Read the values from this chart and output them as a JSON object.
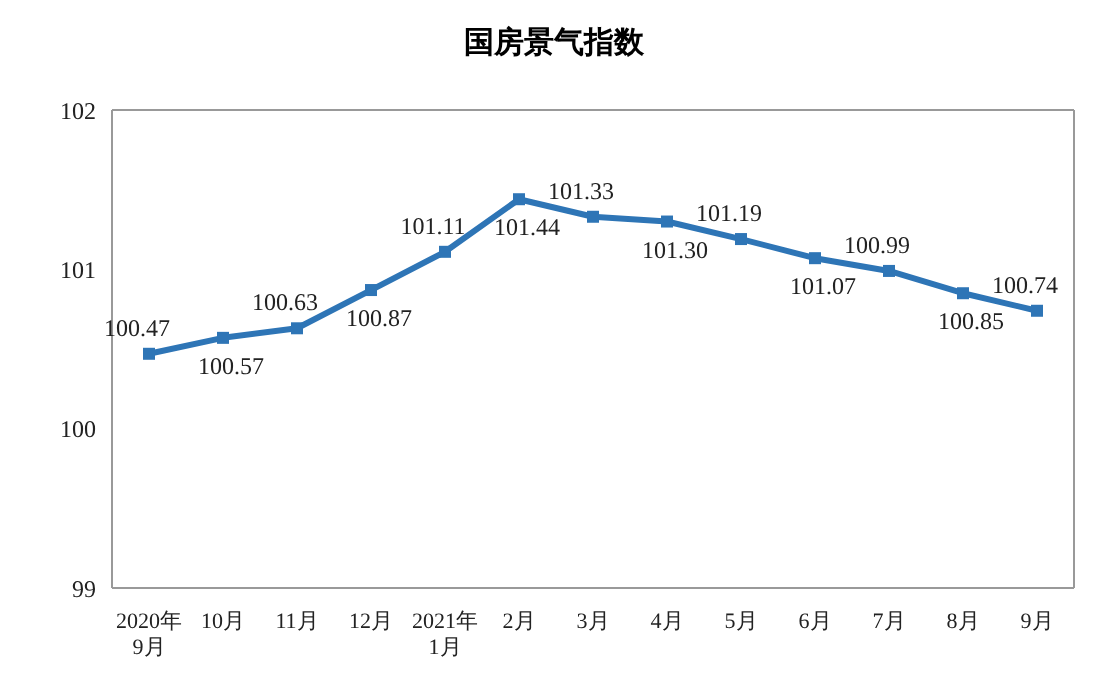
{
  "chart_data": {
    "type": "line",
    "title": "国房景气指数",
    "categories": [
      "2020年\n9月",
      "10月",
      "11月",
      "12月",
      "2021年\n1月",
      "2月",
      "3月",
      "4月",
      "5月",
      "6月",
      "7月",
      "8月",
      "9月"
    ],
    "series": [
      {
        "color": "#2e75b6",
        "values": [
          100.47,
          100.57,
          100.63,
          100.87,
          101.11,
          101.44,
          101.33,
          101.3,
          101.19,
          101.07,
          100.99,
          100.85,
          100.74
        ],
        "value_labels": [
          "100.47",
          "100.57",
          "100.63",
          "100.87",
          "101.11",
          "101.44",
          "101.33",
          "101.30",
          "101.19",
          "101.07",
          "100.99",
          "100.85",
          "100.74"
        ]
      }
    ],
    "ylim": [
      99,
      102
    ],
    "yticks": [
      99,
      100,
      101,
      102
    ],
    "marker": "square",
    "line_style": "solid",
    "grid": false,
    "legend": false
  }
}
